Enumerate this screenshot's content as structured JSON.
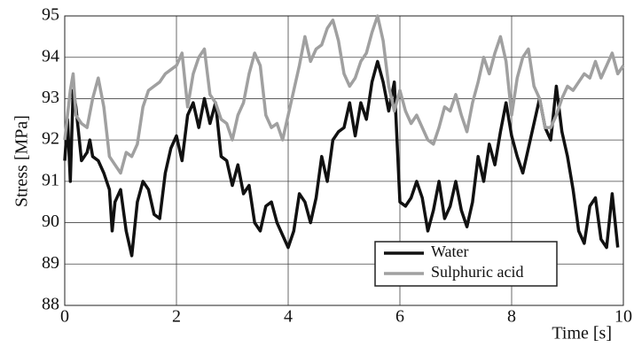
{
  "chart_data": {
    "type": "line",
    "xlabel": "Time [s]",
    "ylabel": "Stress [MPa]",
    "xlim": [
      0,
      10
    ],
    "ylim": [
      88,
      95
    ],
    "xticks": [
      0,
      2,
      4,
      6,
      8,
      10
    ],
    "yticks": [
      88,
      89,
      90,
      91,
      92,
      93,
      94,
      95
    ],
    "grid": true,
    "legend": "lower right",
    "series": [
      {
        "name": "Water",
        "color": "#111111",
        "x": [
          0,
          0.05,
          0.1,
          0.15,
          0.2,
          0.3,
          0.4,
          0.45,
          0.5,
          0.6,
          0.7,
          0.8,
          0.85,
          0.9,
          1.0,
          1.1,
          1.2,
          1.3,
          1.4,
          1.5,
          1.6,
          1.7,
          1.8,
          1.9,
          2.0,
          2.1,
          2.2,
          2.3,
          2.4,
          2.5,
          2.6,
          2.7,
          2.8,
          2.9,
          3.0,
          3.1,
          3.2,
          3.3,
          3.4,
          3.5,
          3.6,
          3.7,
          3.8,
          3.9,
          4.0,
          4.1,
          4.2,
          4.3,
          4.4,
          4.5,
          4.6,
          4.7,
          4.8,
          4.9,
          5.0,
          5.1,
          5.2,
          5.3,
          5.4,
          5.5,
          5.6,
          5.7,
          5.8,
          5.9,
          6.0,
          6.1,
          6.2,
          6.3,
          6.4,
          6.5,
          6.6,
          6.7,
          6.8,
          6.9,
          7.0,
          7.1,
          7.2,
          7.3,
          7.4,
          7.5,
          7.6,
          7.7,
          7.8,
          7.9,
          8.0,
          8.1,
          8.2,
          8.3,
          8.4,
          8.5,
          8.6,
          8.7,
          8.8,
          8.9,
          9.0,
          9.1,
          9.2,
          9.3,
          9.4,
          9.5,
          9.6,
          9.7,
          9.8,
          9.9
        ],
        "values": [
          91.5,
          92.5,
          91.0,
          93.2,
          92.8,
          91.5,
          91.7,
          92.0,
          91.6,
          91.5,
          91.2,
          90.8,
          89.8,
          90.5,
          90.8,
          89.8,
          89.2,
          90.5,
          91.0,
          90.8,
          90.2,
          90.1,
          91.2,
          91.8,
          92.1,
          91.5,
          92.6,
          92.9,
          92.3,
          93.0,
          92.4,
          92.9,
          91.6,
          91.5,
          90.9,
          91.4,
          90.7,
          90.9,
          90.0,
          89.8,
          90.4,
          90.5,
          90.0,
          89.7,
          89.4,
          89.8,
          90.7,
          90.5,
          90.0,
          90.6,
          91.6,
          91.0,
          92.0,
          92.2,
          92.3,
          92.9,
          92.1,
          92.9,
          92.5,
          93.4,
          93.9,
          93.4,
          92.7,
          93.4,
          90.5,
          90.4,
          90.6,
          91.0,
          90.6,
          89.8,
          90.3,
          91.0,
          90.1,
          90.4,
          91.0,
          90.3,
          89.9,
          90.5,
          91.6,
          91.0,
          91.9,
          91.4,
          92.2,
          92.9,
          92.1,
          91.6,
          91.2,
          91.8,
          92.4,
          93.0,
          92.3,
          92.0,
          93.3,
          92.2,
          91.6,
          90.8,
          89.8,
          89.5,
          90.4,
          90.6,
          89.6,
          89.4,
          90.7,
          89.4
        ]
      },
      {
        "name": "Sulphuric acid",
        "color": "#a0a0a0",
        "x": [
          0,
          0.1,
          0.15,
          0.2,
          0.3,
          0.4,
          0.5,
          0.6,
          0.7,
          0.8,
          0.9,
          1.0,
          1.1,
          1.2,
          1.3,
          1.4,
          1.5,
          1.6,
          1.7,
          1.8,
          1.9,
          2.0,
          2.1,
          2.2,
          2.3,
          2.4,
          2.5,
          2.6,
          2.7,
          2.8,
          2.9,
          3.0,
          3.1,
          3.2,
          3.3,
          3.4,
          3.5,
          3.6,
          3.7,
          3.8,
          3.9,
          4.0,
          4.1,
          4.2,
          4.3,
          4.4,
          4.5,
          4.6,
          4.7,
          4.8,
          4.9,
          5.0,
          5.1,
          5.2,
          5.3,
          5.4,
          5.5,
          5.6,
          5.7,
          5.8,
          5.9,
          6.0,
          6.1,
          6.2,
          6.3,
          6.4,
          6.5,
          6.6,
          6.7,
          6.8,
          6.9,
          7.0,
          7.1,
          7.2,
          7.3,
          7.4,
          7.5,
          7.6,
          7.7,
          7.8,
          7.9,
          8.0,
          8.1,
          8.2,
          8.3,
          8.4,
          8.5,
          8.6,
          8.7,
          8.8,
          8.9,
          9.0,
          9.1,
          9.2,
          9.3,
          9.4,
          9.5,
          9.6,
          9.7,
          9.8,
          9.9,
          10.0
        ],
        "values": [
          92.0,
          93.2,
          93.6,
          92.6,
          92.4,
          92.3,
          93.0,
          93.5,
          92.8,
          91.6,
          91.4,
          91.2,
          91.7,
          91.6,
          91.9,
          92.8,
          93.2,
          93.3,
          93.4,
          93.6,
          93.7,
          93.8,
          94.1,
          92.8,
          93.6,
          94.0,
          94.2,
          93.1,
          92.9,
          92.5,
          92.4,
          92.0,
          92.6,
          92.9,
          93.6,
          94.1,
          93.8,
          92.6,
          92.3,
          92.4,
          92.0,
          92.6,
          93.2,
          93.8,
          94.5,
          93.9,
          94.2,
          94.3,
          94.7,
          94.9,
          94.4,
          93.6,
          93.3,
          93.5,
          93.9,
          94.1,
          94.6,
          95.0,
          94.4,
          93.3,
          92.7,
          93.2,
          92.7,
          92.4,
          92.6,
          92.3,
          92.0,
          91.9,
          92.3,
          92.8,
          92.7,
          93.1,
          92.6,
          92.2,
          92.9,
          93.4,
          94.0,
          93.6,
          94.1,
          94.5,
          93.9,
          92.6,
          93.5,
          94.0,
          94.2,
          93.3,
          93.0,
          92.3,
          92.3,
          92.6,
          93.0,
          93.3,
          93.2,
          93.4,
          93.6,
          93.5,
          93.9,
          93.5,
          93.8,
          94.1,
          93.6,
          93.8
        ]
      }
    ]
  }
}
